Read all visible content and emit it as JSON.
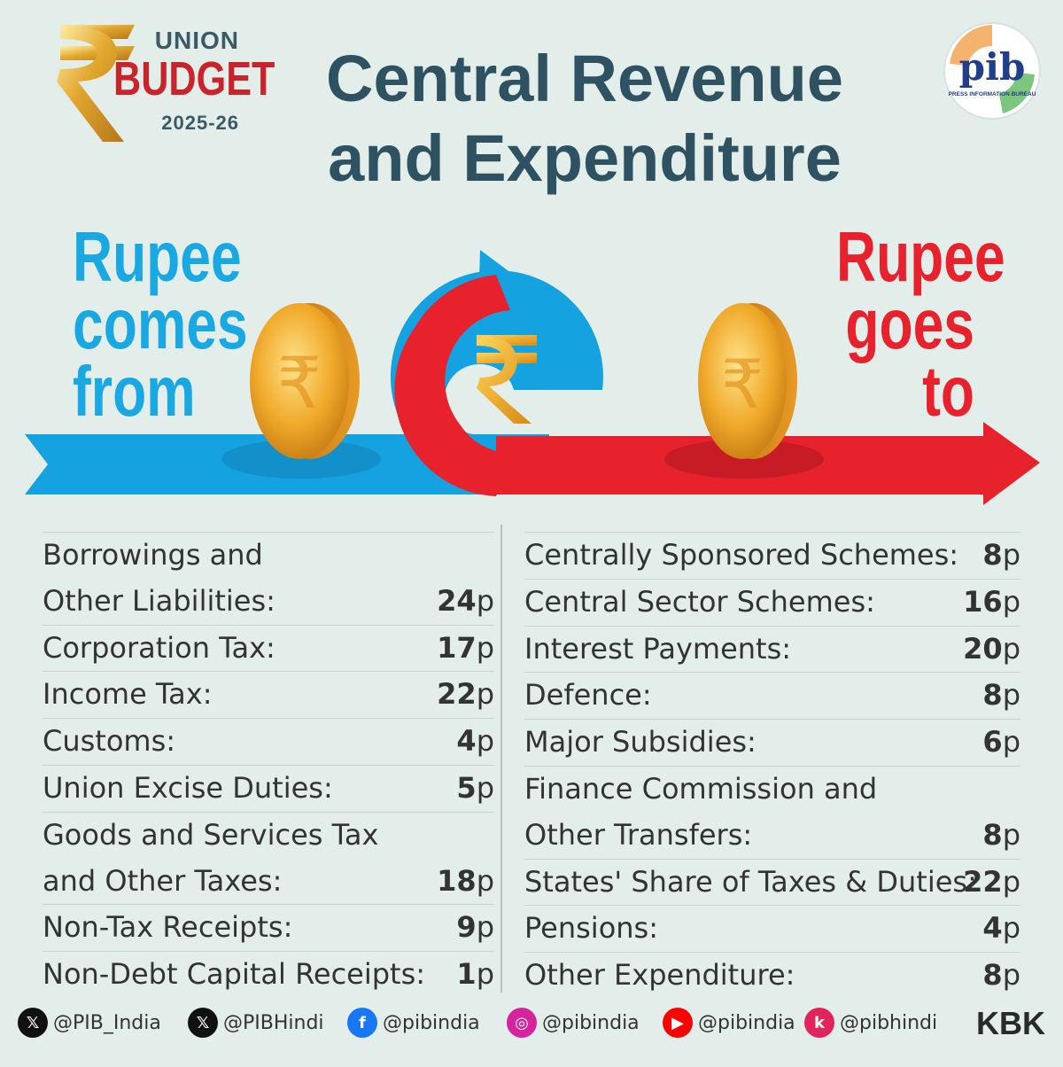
{
  "budget_logo": {
    "union": "UNION",
    "budget": "BUDGET",
    "year": "2025-26"
  },
  "title": {
    "line1": "Central Revenue",
    "line2": "and Expenditure"
  },
  "pib_logo": {
    "text": "pib",
    "caption": "PRESS INFORMATION BUREAU"
  },
  "comes_from": {
    "line1": "Rupee",
    "line2": "comes",
    "line3": "from"
  },
  "goes_to": {
    "line1": "Rupee",
    "line2": "goes",
    "line3": "to"
  },
  "income": [
    {
      "label": "Borrowings and",
      "label2": "Other Liabilities:",
      "value": "24",
      "unit": "p"
    },
    {
      "label": "Corporation Tax:",
      "value": "17",
      "unit": "p"
    },
    {
      "label": "Income Tax:",
      "value": "22",
      "unit": "p"
    },
    {
      "label": "Customs:",
      "value": "4",
      "unit": "p"
    },
    {
      "label": "Union Excise Duties:",
      "value": "5",
      "unit": "p"
    },
    {
      "label": "Goods and Services Tax",
      "label2": "and Other Taxes:",
      "value": "18",
      "unit": "p"
    },
    {
      "label": "Non-Tax Receipts:",
      "value": "9",
      "unit": "p"
    },
    {
      "label": "Non-Debt Capital Receipts:",
      "value": "1",
      "unit": "p"
    }
  ],
  "expenditure": [
    {
      "label": "Centrally Sponsored Schemes:",
      "value": "8",
      "unit": "p"
    },
    {
      "label": "Central Sector Schemes:",
      "value": "16",
      "unit": "p"
    },
    {
      "label": "Interest Payments:",
      "value": "20",
      "unit": "p"
    },
    {
      "label": "Defence:",
      "value": "8",
      "unit": "p"
    },
    {
      "label": "Major Subsidies:",
      "value": "6",
      "unit": "p"
    },
    {
      "label": "Finance Commission and",
      "label2": "Other Transfers:",
      "value": "8",
      "unit": "p"
    },
    {
      "label": "States' Share of Taxes & Duties:",
      "value": "22",
      "unit": "p"
    },
    {
      "label": "Pensions:",
      "value": "4",
      "unit": "p"
    },
    {
      "label": "Other Expenditure:",
      "value": "8",
      "unit": "p"
    }
  ],
  "footer": {
    "handles": [
      {
        "icon": "x-icon",
        "text": "@PIB_India",
        "color": "#111111"
      },
      {
        "icon": "x-icon",
        "text": "@PIBHindi",
        "color": "#111111"
      },
      {
        "icon": "facebook-icon",
        "text": "@pibindia",
        "color": "#1877f2"
      },
      {
        "icon": "instagram-icon",
        "text": "@pibindia",
        "color": "#d6249f"
      },
      {
        "icon": "youtube-icon",
        "text": "@pibindia",
        "color": "#ff0000"
      },
      {
        "icon": "koo-icon",
        "text": "@pibhindi",
        "color": "#e0245e"
      }
    ],
    "credit": "KBK"
  },
  "colors": {
    "background": "#e3eeea",
    "blue": "#1aa8e2",
    "red": "#e8222d",
    "title": "#2f5262",
    "gold": "#e8a21a"
  }
}
